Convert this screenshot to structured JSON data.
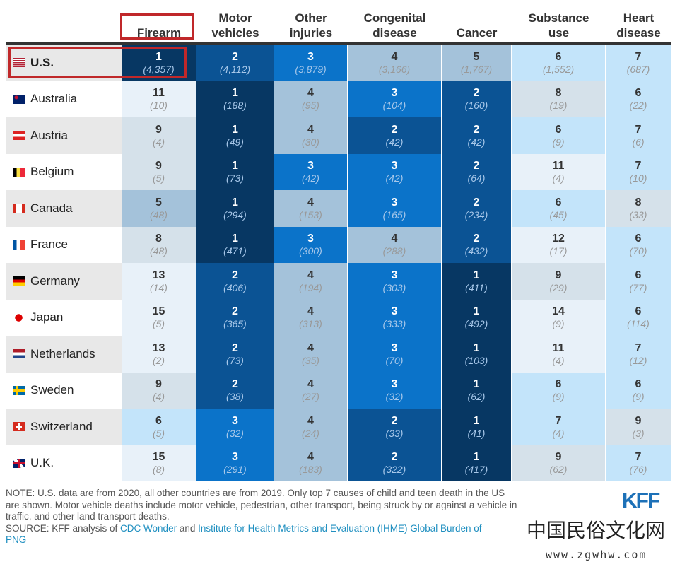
{
  "chart_data": {
    "type": "table",
    "columns": [
      "Firearm",
      "Motor vehicles",
      "Other injuries",
      "Congenital disease",
      "Cancer",
      "Substance use",
      "Heart disease"
    ],
    "column_headers_display": [
      [
        "",
        "Firearm"
      ],
      [
        "Motor",
        "vehicles"
      ],
      [
        "Other",
        "injuries"
      ],
      [
        "Congenital",
        "disease"
      ],
      [
        "",
        "Cancer"
      ],
      [
        "Substance",
        "use"
      ],
      [
        "Heart",
        "disease"
      ]
    ],
    "highlighted_column": "Firearm",
    "highlighted_row": "U.S.",
    "rows": [
      {
        "country": "U.S.",
        "flag": "us-flag-icon",
        "ranks": [
          1,
          2,
          3,
          4,
          5,
          6,
          7
        ],
        "counts": [
          "4,357",
          "4,112",
          "3,879",
          "3,166",
          "1,767",
          "1,552",
          "687"
        ]
      },
      {
        "country": "Australia",
        "flag": "australia-flag-icon",
        "ranks": [
          11,
          1,
          4,
          3,
          2,
          8,
          6
        ],
        "counts": [
          "10",
          "188",
          "95",
          "104",
          "160",
          "19",
          "22"
        ]
      },
      {
        "country": "Austria",
        "flag": "austria-flag-icon",
        "ranks": [
          9,
          1,
          4,
          2,
          2,
          6,
          7
        ],
        "counts": [
          "4",
          "49",
          "30",
          "42",
          "42",
          "9",
          "6"
        ]
      },
      {
        "country": "Belgium",
        "flag": "belgium-flag-icon",
        "ranks": [
          9,
          1,
          3,
          3,
          2,
          11,
          7
        ],
        "counts": [
          "5",
          "73",
          "42",
          "42",
          "64",
          "4",
          "10"
        ]
      },
      {
        "country": "Canada",
        "flag": "canada-flag-icon",
        "ranks": [
          5,
          1,
          4,
          3,
          2,
          6,
          8
        ],
        "counts": [
          "48",
          "294",
          "153",
          "165",
          "234",
          "45",
          "33"
        ]
      },
      {
        "country": "France",
        "flag": "france-flag-icon",
        "ranks": [
          8,
          1,
          3,
          4,
          2,
          12,
          6
        ],
        "counts": [
          "48",
          "471",
          "300",
          "288",
          "432",
          "17",
          "70"
        ]
      },
      {
        "country": "Germany",
        "flag": "germany-flag-icon",
        "ranks": [
          13,
          2,
          4,
          3,
          1,
          9,
          6
        ],
        "counts": [
          "14",
          "406",
          "194",
          "303",
          "411",
          "29",
          "77"
        ]
      },
      {
        "country": "Japan",
        "flag": "japan-flag-icon",
        "ranks": [
          15,
          2,
          4,
          3,
          1,
          14,
          6
        ],
        "counts": [
          "5",
          "365",
          "313",
          "333",
          "492",
          "9",
          "114"
        ]
      },
      {
        "country": "Netherlands",
        "flag": "netherlands-flag-icon",
        "ranks": [
          13,
          2,
          4,
          3,
          1,
          11,
          7
        ],
        "counts": [
          "2",
          "73",
          "35",
          "70",
          "103",
          "4",
          "12"
        ]
      },
      {
        "country": "Sweden",
        "flag": "sweden-flag-icon",
        "ranks": [
          9,
          2,
          4,
          3,
          1,
          6,
          6
        ],
        "counts": [
          "4",
          "38",
          "27",
          "32",
          "62",
          "9",
          "9"
        ]
      },
      {
        "country": "Switzerland",
        "flag": "switzerland-flag-icon",
        "ranks": [
          6,
          3,
          4,
          2,
          1,
          7,
          9
        ],
        "counts": [
          "5",
          "32",
          "24",
          "33",
          "41",
          "4",
          "3"
        ]
      },
      {
        "country": "U.K.",
        "flag": "uk-flag-icon",
        "ranks": [
          15,
          3,
          4,
          2,
          1,
          9,
          7
        ],
        "counts": [
          "8",
          "291",
          "183",
          "322",
          "417",
          "62",
          "76"
        ]
      }
    ],
    "rank_colors": {
      "1": "#073763",
      "2": "#0b5394",
      "3": "#0b73c9",
      "4": "#a4c2da",
      "5": "#a4c2da",
      "6": "#c3e4fa",
      "7": "#c3e4fa",
      "8": "#d5e1ea",
      "9": "#d5e1ea",
      "10+": "#e8f1f9"
    },
    "highlight_color": "#c0282a"
  },
  "footer": {
    "note": "NOTE: U.S. data are from 2020, all other countries are from 2019. Only top 7 causes of child and teen death in the US are shown. Motor vehicle deaths include motor vehicle, pedestrian, other transport, being struck by or against a vehicle in traffic, and other land transport deaths.",
    "source_prefix": "SOURCE: KFF analysis of ",
    "source_link1": "CDC Wonder",
    "source_and": " and ",
    "source_link2": "Institute for Health Metrics and Evaluation (IHME) Global Burden of",
    "png_link": "PNG",
    "logo": "KFF"
  },
  "watermark": {
    "text": "中国民俗文化网",
    "url": "www.zgwhw.com"
  }
}
